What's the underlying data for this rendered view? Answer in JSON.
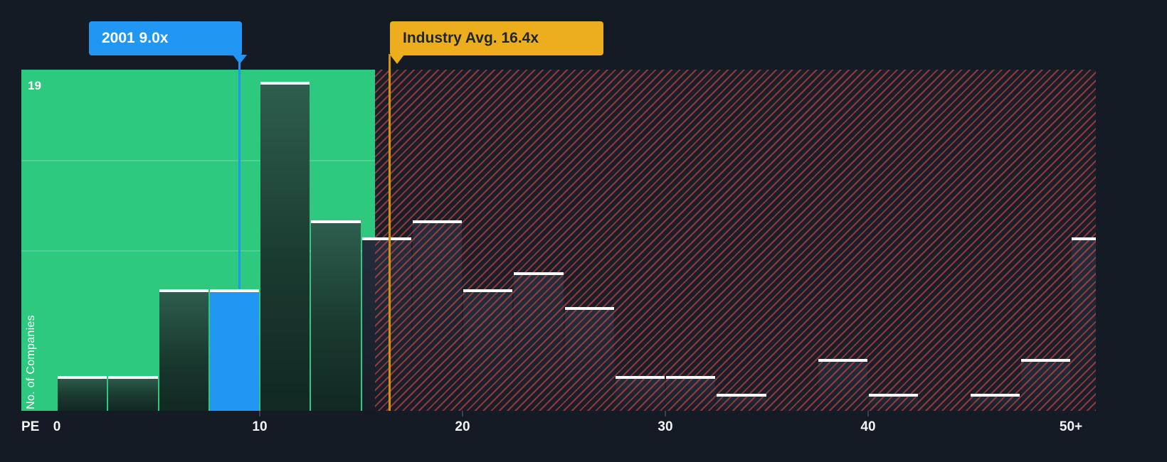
{
  "page": {
    "background": "#141b24"
  },
  "chart_data": {
    "type": "bar",
    "subtype": "histogram",
    "ylabel": "No. of Companies",
    "xlabel": "PE",
    "ymax": 19,
    "ymax_label": "19",
    "ylim": [
      0,
      19
    ],
    "bin_width": 2.5,
    "x_axis": {
      "ticks": [
        {
          "label": "0",
          "pe": 0
        },
        {
          "label": "10",
          "pe": 10
        },
        {
          "label": "20",
          "pe": 20
        },
        {
          "label": "30",
          "pe": 30
        },
        {
          "label": "40",
          "pe": 40
        },
        {
          "label": "50+",
          "pe": 50
        }
      ],
      "tick_marks_pe": [
        10,
        20,
        30,
        40
      ]
    },
    "bars": [
      {
        "pe_start": 0,
        "count": 2
      },
      {
        "pe_start": 2.5,
        "count": 2
      },
      {
        "pe_start": 5,
        "count": 7
      },
      {
        "pe_start": 7.5,
        "count": 7,
        "highlight": true
      },
      {
        "pe_start": 10,
        "count": 19
      },
      {
        "pe_start": 12.5,
        "count": 11
      },
      {
        "pe_start": 15,
        "count": 10
      },
      {
        "pe_start": 17.5,
        "count": 11
      },
      {
        "pe_start": 20,
        "count": 7
      },
      {
        "pe_start": 22.5,
        "count": 8
      },
      {
        "pe_start": 25,
        "count": 6
      },
      {
        "pe_start": 27.5,
        "count": 2
      },
      {
        "pe_start": 30,
        "count": 2
      },
      {
        "pe_start": 32.5,
        "count": 1
      },
      {
        "pe_start": 35,
        "count": 0
      },
      {
        "pe_start": 37.5,
        "count": 3
      },
      {
        "pe_start": 40,
        "count": 1
      },
      {
        "pe_start": 42.5,
        "count": 0
      },
      {
        "pe_start": 45,
        "count": 1
      },
      {
        "pe_start": 47.5,
        "count": 3
      },
      {
        "pe_start": 50,
        "count": 10
      }
    ],
    "markers": {
      "company": {
        "label": "2001 9.0x",
        "pe": 9.0,
        "color": "#2196f3"
      },
      "industry": {
        "label": "Industry Avg. 16.4x",
        "pe": 16.4,
        "color": "#edae1e",
        "line_color": "#d3920e"
      }
    },
    "zones": {
      "undervalued_color": "#2dc97e",
      "overvalued_bg": "#1a1e29",
      "hatch_stripe_color": "#e04b4599",
      "green_end_pe": 15.7
    }
  }
}
